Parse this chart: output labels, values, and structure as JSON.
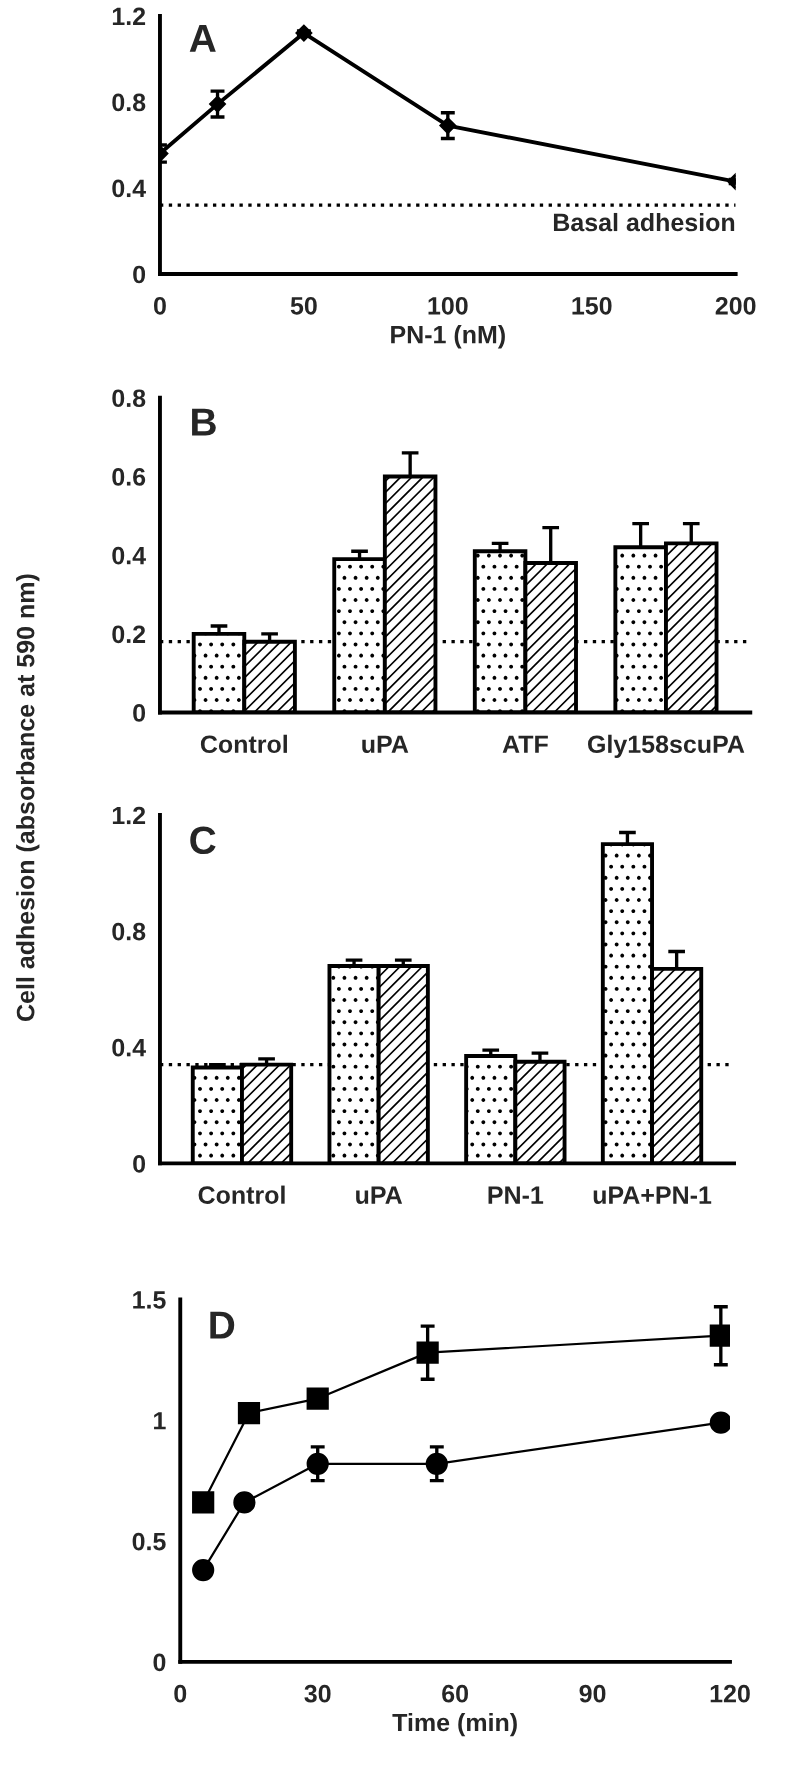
{
  "chart_data": [
    {
      "type": "line",
      "title": "A",
      "xlabel": "PN-1 (nM)",
      "x": [
        0,
        20,
        50,
        100,
        200
      ],
      "xlim": [
        0,
        200
      ],
      "xticks": [
        0,
        50,
        100,
        150,
        200
      ],
      "ylim": [
        0,
        1.2
      ],
      "yticks": [
        0,
        0.4,
        0.8,
        1.2
      ],
      "marker": "diamond",
      "line_style": "solid",
      "series": [
        {
          "color": "#000000",
          "values": [
            0.56,
            0.79,
            1.12,
            0.69,
            0.43
          ],
          "errors": [
            0.04,
            0.06,
            0.01,
            0.06,
            0.01
          ]
        }
      ],
      "ref_lines": [
        {
          "axis": "y",
          "value": 0.32,
          "label": "Basal adhesion",
          "color": "#000000",
          "line_style": "dotted"
        }
      ]
    },
    {
      "type": "bar",
      "title": "B",
      "categories": [
        "Control",
        "uPA",
        "ATF",
        "Gly158scuPA"
      ],
      "ylim": [
        0,
        0.8
      ],
      "yticks": [
        0,
        0.2,
        0.4,
        0.6,
        0.8
      ],
      "series": [
        {
          "color": "#000000",
          "values": [
            0.2,
            0.39,
            0.41,
            0.42
          ],
          "errors": [
            0.02,
            0.02,
            0.02,
            0.06
          ]
        },
        {
          "color": "#000000",
          "values": [
            0.18,
            0.6,
            0.38,
            0.43
          ],
          "errors": [
            0.02,
            0.06,
            0.09,
            0.05
          ]
        }
      ],
      "ref_lines": [
        {
          "axis": "y",
          "value": 0.18,
          "color": "#000000",
          "line_style": "dotted"
        }
      ]
    },
    {
      "type": "bar",
      "title": "C",
      "ylabel": "Cell adhesion (absorbance at 590 nm)",
      "categories": [
        "Control",
        "uPA",
        "PN-1",
        "uPA+PN-1"
      ],
      "ylim": [
        0,
        1.2
      ],
      "yticks": [
        0,
        0.4,
        0.8,
        1.2
      ],
      "series": [
        {
          "color": "#000000",
          "values": [
            0.33,
            0.68,
            0.37,
            1.1
          ],
          "errors": [
            0.01,
            0.02,
            0.02,
            0.04
          ]
        },
        {
          "color": "#000000",
          "values": [
            0.34,
            0.68,
            0.35,
            0.67
          ],
          "errors": [
            0.02,
            0.02,
            0.03,
            0.06
          ]
        }
      ],
      "ref_lines": [
        {
          "axis": "y",
          "value": 0.34,
          "color": "#000000",
          "line_style": "dotted"
        }
      ]
    },
    {
      "type": "line",
      "title": "D",
      "xlabel": "Time (min)",
      "xlim": [
        0,
        120
      ],
      "xticks": [
        0,
        30,
        60,
        90,
        120
      ],
      "ylim": [
        0,
        1.5
      ],
      "yticks": [
        0,
        0.5,
        1,
        1.5
      ],
      "line_style": "solid",
      "series": [
        {
          "color": "#000000",
          "marker": "square",
          "x": [
            5,
            15,
            30,
            54,
            118
          ],
          "values": [
            0.66,
            1.03,
            1.09,
            1.28,
            1.35
          ],
          "errors": [
            null,
            null,
            null,
            0.11,
            0.12
          ]
        },
        {
          "color": "#000000",
          "marker": "circle",
          "x": [
            5,
            14,
            30,
            56,
            118
          ],
          "values": [
            0.38,
            0.66,
            0.82,
            0.82,
            0.99
          ],
          "errors": [
            null,
            null,
            0.07,
            0.07,
            null
          ]
        }
      ]
    }
  ]
}
